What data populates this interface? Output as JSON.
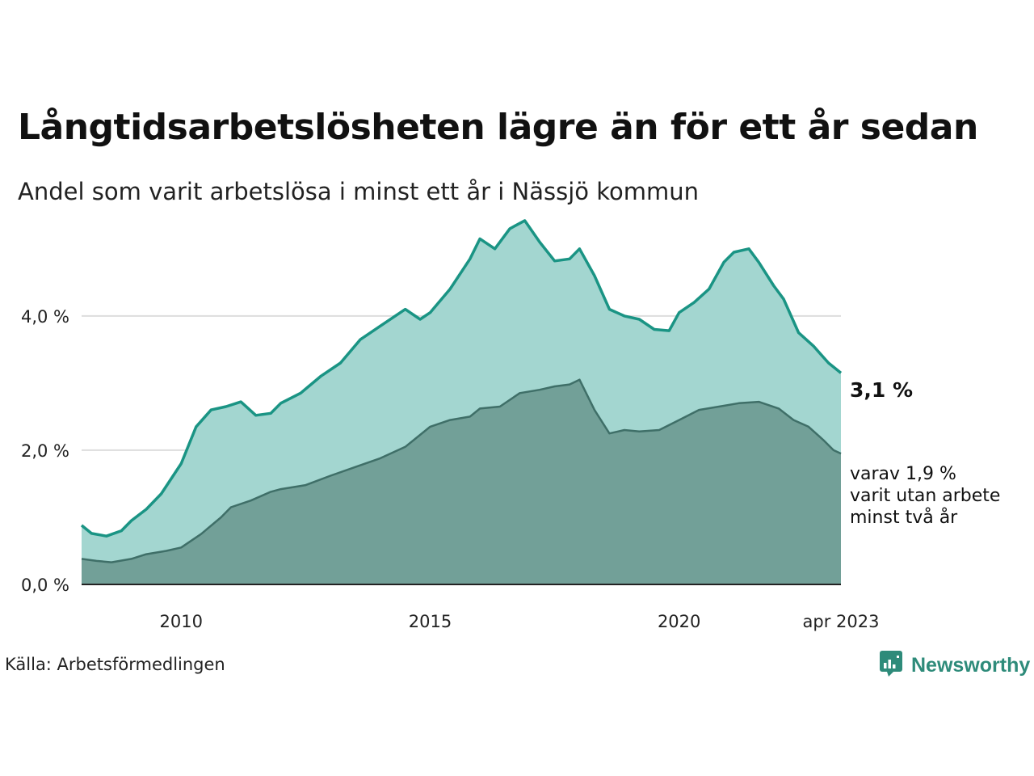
{
  "title": "Långtidsarbetslösheten lägre än för ett år sedan",
  "subtitle": "Andel som varit arbetslösa i minst ett år i Nässjö kommun",
  "source": "Källa: Arbetsförmedlingen",
  "brand": {
    "name": "Newsworthy",
    "logo_icon": "newsworthy-logo-icon"
  },
  "colors": {
    "total_line": "#1a9484",
    "total_fill": "#a3d6d0",
    "sub_line": "#3f6f68",
    "sub_fill": "#72a098",
    "grid": "#dddddd",
    "axis": "#222222",
    "brand": "#2e8b7a"
  },
  "chart_data": {
    "type": "area",
    "x_start": "jan 2008",
    "x_end": "apr 2023",
    "x_ticks": [
      {
        "x": 2010,
        "label": "2010"
      },
      {
        "x": 2015,
        "label": "2015"
      },
      {
        "x": 2020,
        "label": "2020"
      },
      {
        "x": 2023.25,
        "label": "apr 2023"
      }
    ],
    "y_ticks": [
      {
        "y": 0,
        "label": "0,0 %"
      },
      {
        "y": 2,
        "label": "2,0 %"
      },
      {
        "y": 4,
        "label": "4,0 %"
      }
    ],
    "ylim": [
      0,
      5.6
    ],
    "xlim": [
      2008.0,
      2023.25
    ],
    "grid": true,
    "series": [
      {
        "key": "total",
        "x": [
          2008.0,
          2008.2,
          2008.5,
          2008.8,
          2009.0,
          2009.3,
          2009.6,
          2010.0,
          2010.3,
          2010.6,
          2010.9,
          2011.2,
          2011.5,
          2011.8,
          2012.0,
          2012.4,
          2012.8,
          2013.2,
          2013.6,
          2014.0,
          2014.5,
          2014.8,
          2015.0,
          2015.4,
          2015.8,
          2016.0,
          2016.3,
          2016.6,
          2016.9,
          2017.2,
          2017.5,
          2017.8,
          2018.0,
          2018.3,
          2018.6,
          2018.9,
          2019.2,
          2019.5,
          2019.8,
          2020.0,
          2020.3,
          2020.6,
          2020.9,
          2021.1,
          2021.4,
          2021.6,
          2021.9,
          2022.1,
          2022.4,
          2022.7,
          2023.0,
          2023.25
        ],
        "y": [
          0.88,
          0.76,
          0.72,
          0.8,
          0.95,
          1.12,
          1.35,
          1.8,
          2.35,
          2.6,
          2.65,
          2.72,
          2.52,
          2.55,
          2.7,
          2.85,
          3.1,
          3.3,
          3.65,
          3.85,
          4.1,
          3.95,
          4.05,
          4.4,
          4.85,
          5.15,
          5.0,
          5.3,
          5.42,
          5.1,
          4.82,
          4.85,
          5.0,
          4.6,
          4.1,
          4.0,
          3.95,
          3.8,
          3.78,
          4.05,
          4.2,
          4.4,
          4.8,
          4.95,
          5.0,
          4.8,
          4.45,
          4.25,
          3.75,
          3.55,
          3.3,
          3.15
        ]
      },
      {
        "key": "sub",
        "x": [
          2008.0,
          2008.3,
          2008.6,
          2009.0,
          2009.3,
          2009.7,
          2010.0,
          2010.4,
          2010.8,
          2011.0,
          2011.4,
          2011.8,
          2012.0,
          2012.5,
          2013.0,
          2013.5,
          2014.0,
          2014.5,
          2015.0,
          2015.4,
          2015.8,
          2016.0,
          2016.4,
          2016.8,
          2017.2,
          2017.5,
          2017.8,
          2018.0,
          2018.3,
          2018.6,
          2018.9,
          2019.2,
          2019.6,
          2020.0,
          2020.4,
          2020.8,
          2021.2,
          2021.6,
          2022.0,
          2022.3,
          2022.6,
          2022.9,
          2023.1,
          2023.25
        ],
        "y": [
          0.38,
          0.35,
          0.33,
          0.38,
          0.45,
          0.5,
          0.55,
          0.75,
          1.0,
          1.15,
          1.25,
          1.38,
          1.42,
          1.48,
          1.62,
          1.75,
          1.88,
          2.05,
          2.35,
          2.45,
          2.5,
          2.62,
          2.65,
          2.85,
          2.9,
          2.95,
          2.98,
          3.05,
          2.6,
          2.25,
          2.3,
          2.28,
          2.3,
          2.45,
          2.6,
          2.65,
          2.7,
          2.72,
          2.62,
          2.45,
          2.35,
          2.15,
          2.0,
          1.95
        ]
      }
    ],
    "labels": {
      "total_end": "3,1 %",
      "sub_end": [
        "varav 1,9 %",
        "varit utan arbete",
        "minst två år"
      ]
    }
  }
}
